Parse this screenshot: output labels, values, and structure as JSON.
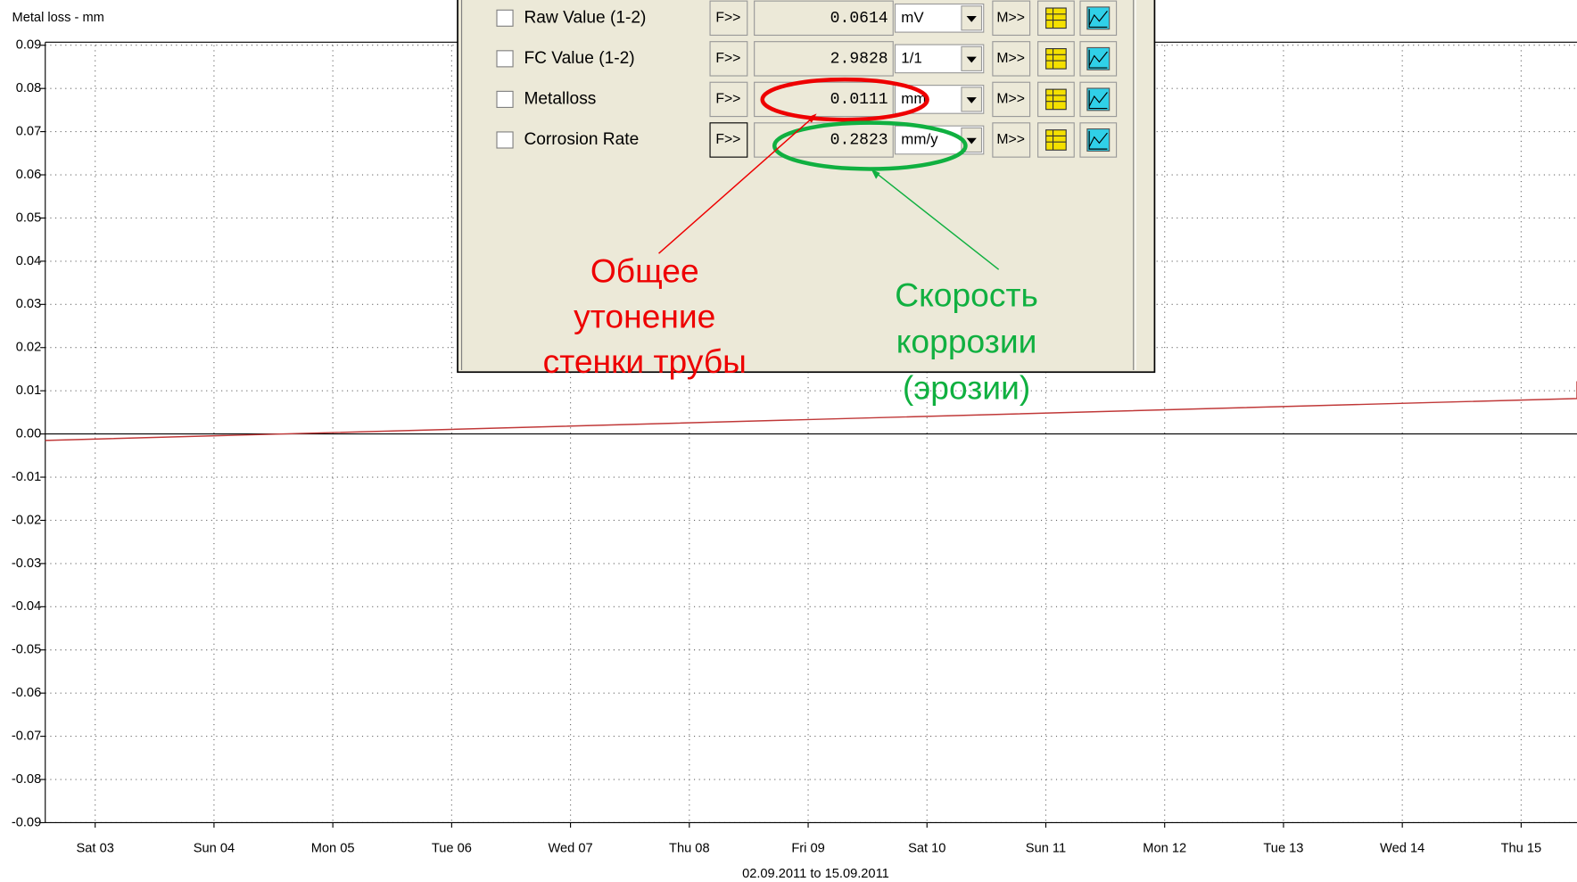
{
  "chart_data": {
    "type": "line",
    "y_axis_label": "Metal loss - mm",
    "x_caption": "02.09.2011 to 15.09.2011",
    "x": [
      2.58,
      15.47,
      15.47
    ],
    "series": [
      {
        "color": "#c03838",
        "values": [
          -0.0015,
          0.0082,
          0.0122
        ]
      }
    ],
    "xlim": [
      2.58,
      15.47
    ],
    "xticks": [
      {
        "value": 3,
        "label": "Sat 03"
      },
      {
        "value": 4,
        "label": "Sun 04"
      },
      {
        "value": 5,
        "label": "Mon 05"
      },
      {
        "value": 6,
        "label": "Tue 06"
      },
      {
        "value": 7,
        "label": "Wed 07"
      },
      {
        "value": 8,
        "label": "Thu 08"
      },
      {
        "value": 9,
        "label": "Fri 09"
      },
      {
        "value": 10,
        "label": "Sat 10"
      },
      {
        "value": 11,
        "label": "Sun 11"
      },
      {
        "value": 12,
        "label": "Mon 12"
      },
      {
        "value": 13,
        "label": "Tue 13"
      },
      {
        "value": 14,
        "label": "Wed 14"
      },
      {
        "value": 15,
        "label": "Thu 15"
      }
    ],
    "ylim": [
      -0.09,
      0.09
    ],
    "yticks": [
      0.09,
      0.08,
      0.07,
      0.06,
      0.05,
      0.04,
      0.03,
      0.02,
      0.01,
      {
        "value": 0,
        "label": "0.00"
      },
      -0.01,
      -0.02,
      -0.03,
      -0.04,
      -0.05,
      -0.06,
      -0.07,
      -0.08,
      -0.09
    ],
    "grid": true
  },
  "panel": {
    "f_button": "F>>",
    "m_button": "M>>",
    "rows": [
      {
        "label": "Raw Value (1-2)",
        "value": "0.0614",
        "unit": "mV"
      },
      {
        "label": "FC Value (1-2)",
        "value": "2.9828",
        "unit": "1/1"
      },
      {
        "label": "Metalloss",
        "value": "0.0111",
        "unit": "mm"
      },
      {
        "label": "Corrosion Rate",
        "value": "0.2823",
        "unit": "mm/y"
      }
    ]
  },
  "annotations": {
    "metal_loss": [
      "Общее",
      "утонение",
      "стенки трубы"
    ],
    "corrosion_rate": [
      "Скорость",
      "коррозии",
      "(эрозии)"
    ]
  }
}
